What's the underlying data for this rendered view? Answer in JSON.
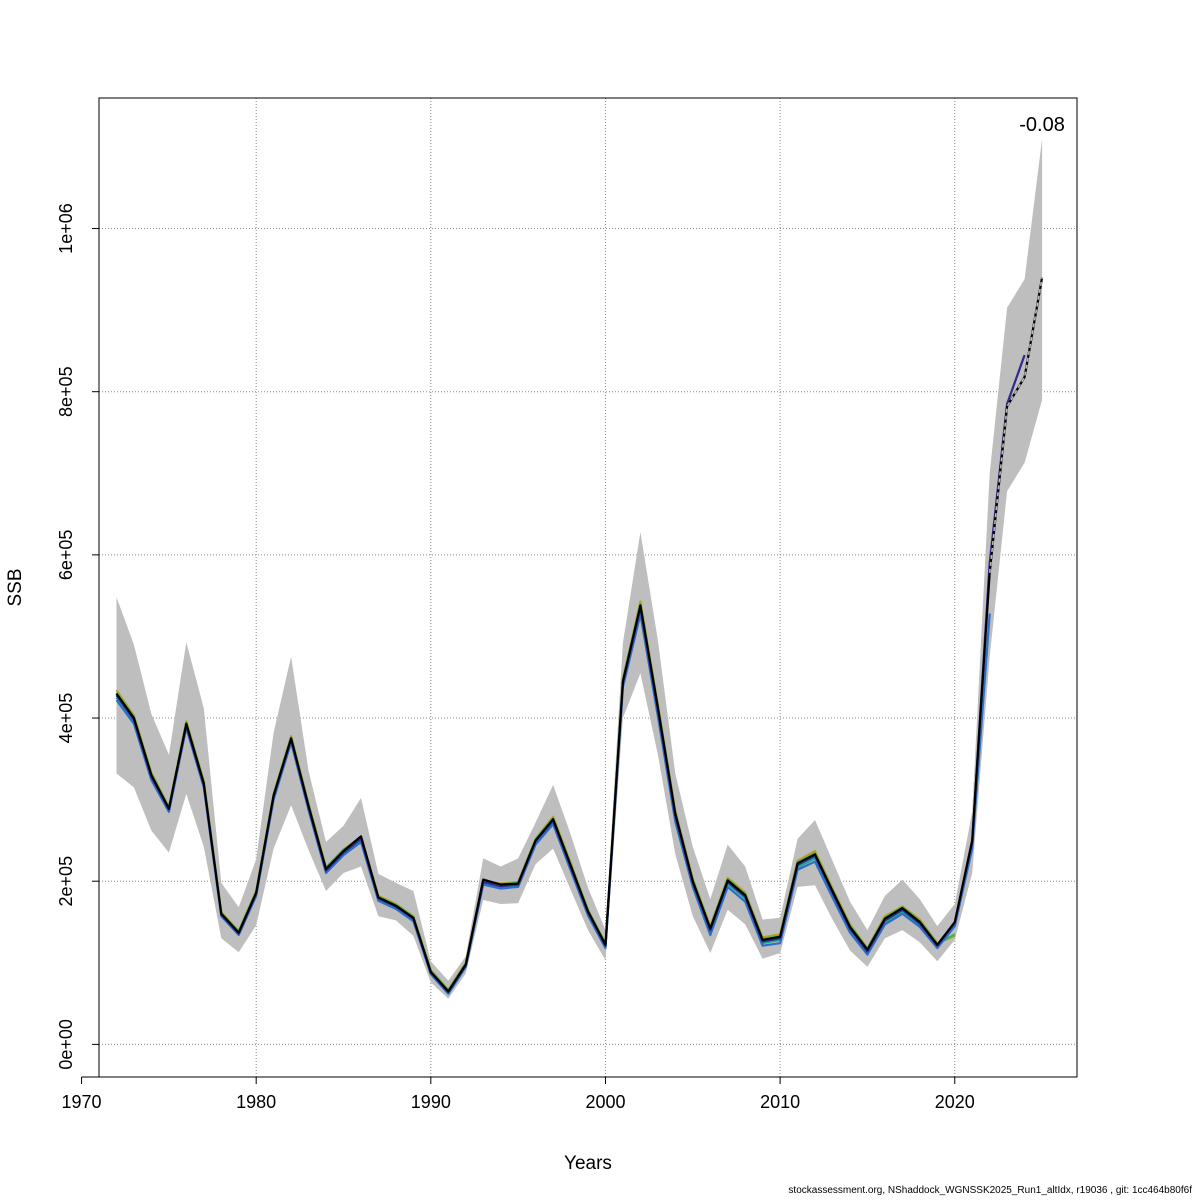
{
  "chart_data": {
    "type": "line",
    "title": "",
    "xlabel": "Years",
    "ylabel": "SSB",
    "xlim": [
      1971,
      2027
    ],
    "ylim": [
      -40000,
      1160000
    ],
    "grid": true,
    "x_ticks": [
      1970,
      1980,
      1990,
      2000,
      2010,
      2020
    ],
    "x_tick_labels": [
      "1970",
      "1980",
      "1990",
      "2000",
      "2010",
      "2020"
    ],
    "y_ticks": [
      0,
      200000,
      400000,
      600000,
      800000,
      1000000
    ],
    "y_tick_labels": [
      "0e+00",
      "2e+05",
      "4e+05",
      "6e+05",
      "8e+05",
      "1e+06"
    ],
    "annotation": "-0.08",
    "confidence_band": {
      "color": "#bebebe",
      "x": [
        1972,
        1973,
        1974,
        1975,
        1976,
        1977,
        1978,
        1979,
        1980,
        1981,
        1982,
        1983,
        1984,
        1985,
        1986,
        1987,
        1988,
        1989,
        1990,
        1991,
        1992,
        1993,
        1994,
        1995,
        1996,
        1997,
        1998,
        1999,
        2000,
        2001,
        2002,
        2003,
        2004,
        2005,
        2006,
        2007,
        2008,
        2009,
        2010,
        2011,
        2012,
        2013,
        2014,
        2015,
        2016,
        2017,
        2018,
        2019,
        2020,
        2021,
        2022,
        2023,
        2024,
        2025
      ],
      "upper": [
        548000,
        490000,
        405000,
        355000,
        493000,
        412000,
        198000,
        168000,
        227000,
        382000,
        475000,
        335000,
        248000,
        268000,
        302000,
        209000,
        198000,
        188000,
        102000,
        78000,
        108000,
        228000,
        218000,
        228000,
        272000,
        318000,
        258000,
        192000,
        140000,
        492000,
        628000,
        495000,
        332000,
        242000,
        178000,
        245000,
        218000,
        153000,
        155000,
        252000,
        275000,
        225000,
        175000,
        140000,
        182000,
        202000,
        178000,
        145000,
        172000,
        285000,
        700000,
        903000,
        938000,
        1110000
      ],
      "lower": [
        332000,
        315000,
        262000,
        235000,
        307000,
        242000,
        130000,
        113000,
        146000,
        240000,
        293000,
        238000,
        188000,
        210000,
        218000,
        157000,
        152000,
        133000,
        76000,
        56000,
        87000,
        177000,
        172000,
        173000,
        221000,
        240000,
        190000,
        140000,
        103000,
        400000,
        455000,
        355000,
        233000,
        157000,
        112000,
        165000,
        147000,
        105000,
        112000,
        193000,
        195000,
        153000,
        115000,
        95000,
        130000,
        140000,
        125000,
        102000,
        128000,
        210000,
        475000,
        678000,
        713000,
        790000
      ]
    },
    "series": [
      {
        "color": "#000000",
        "x": [
          1972,
          1973,
          1974,
          1975,
          1976,
          1977,
          1978,
          1979,
          1980,
          1981,
          1982,
          1983,
          1984,
          1985,
          1986,
          1987,
          1988,
          1989,
          1990,
          1991,
          1992,
          1993,
          1994,
          1995,
          1996,
          1997,
          1998,
          1999,
          2000,
          2001,
          2002,
          2003,
          2004,
          2005,
          2006,
          2007,
          2008,
          2009,
          2010,
          2011,
          2012,
          2013,
          2014,
          2015,
          2016,
          2017,
          2018,
          2019,
          2020,
          2021,
          2022,
          2023,
          2024,
          2025
        ],
        "values": [
          430000,
          400000,
          330000,
          289000,
          393000,
          320000,
          160000,
          137000,
          186000,
          305000,
          375000,
          292000,
          215000,
          237000,
          255000,
          180000,
          170000,
          155000,
          89000,
          65000,
          98000,
          202000,
          196000,
          197000,
          250000,
          276000,
          220000,
          163000,
          122000,
          445000,
          538000,
          413000,
          283000,
          200000,
          142000,
          201000,
          183000,
          128000,
          132000,
          222000,
          233000,
          188000,
          144000,
          116000,
          154000,
          167000,
          150000,
          122000,
          150000,
          250000,
          578000,
          782000,
          818000,
          940000
        ]
      },
      {
        "color": "#2f2a8c",
        "x": [
          1972,
          1973,
          1974,
          1975,
          1976,
          1977,
          1978,
          1979,
          1980,
          1981,
          1982,
          1983,
          1984,
          1985,
          1986,
          1987,
          1988,
          1989,
          1990,
          1991,
          1992,
          1993,
          1994,
          1995,
          1996,
          1997,
          1998,
          1999,
          2000,
          2001,
          2002,
          2003,
          2004,
          2005,
          2006,
          2007,
          2008,
          2009,
          2010,
          2011,
          2012,
          2013,
          2014,
          2015,
          2016,
          2017,
          2018,
          2019,
          2020,
          2021,
          2022,
          2023,
          2024
        ],
        "values": [
          428000,
          398000,
          328000,
          288000,
          391000,
          318000,
          159000,
          136000,
          185000,
          304000,
          374000,
          290000,
          213000,
          235000,
          252000,
          179000,
          169000,
          154000,
          88000,
          64000,
          97000,
          199000,
          194000,
          196000,
          249000,
          274000,
          218000,
          162000,
          121000,
          443000,
          535000,
          410000,
          280000,
          198000,
          140000,
          199000,
          181000,
          126000,
          130000,
          220000,
          231000,
          186000,
          142000,
          114000,
          152000,
          165000,
          148000,
          121000,
          149000,
          248000,
          590000,
          785000,
          845000
        ]
      },
      {
        "color": "#2c6ec9",
        "x": [
          1972,
          1973,
          1974,
          1975,
          1976,
          1977,
          1978,
          1979,
          1980,
          1981,
          1982,
          1983,
          1984,
          1985,
          1986,
          1987,
          1988,
          1989,
          1990,
          1991,
          1992,
          1993,
          1994,
          1995,
          1996,
          1997,
          1998,
          1999,
          2000,
          2001,
          2002,
          2003,
          2004,
          2005,
          2006,
          2007,
          2008,
          2009,
          2010,
          2011,
          2012,
          2013,
          2014,
          2015,
          2016,
          2017,
          2018,
          2019,
          2020,
          2021,
          2022
        ],
        "values": [
          422000,
          393000,
          324000,
          285000,
          388000,
          315000,
          157000,
          134000,
          182000,
          300000,
          370000,
          287000,
          210000,
          232000,
          248000,
          176000,
          166000,
          151000,
          86000,
          62000,
          95000,
          196000,
          191000,
          193000,
          245000,
          270000,
          214000,
          158000,
          118000,
          438000,
          527000,
          402000,
          273000,
          193000,
          134000,
          193000,
          175000,
          121000,
          124000,
          214000,
          224000,
          180000,
          137000,
          110000,
          147000,
          160000,
          144000,
          118000,
          145000,
          240000,
          528000
        ]
      },
      {
        "color": "#1fa88e",
        "x": [
          1972,
          1973,
          1974,
          1975,
          1976,
          1977,
          1978,
          1979,
          1980,
          1981,
          1982,
          1983,
          1984,
          1985,
          1986,
          1987,
          1988,
          1989,
          1990,
          1991,
          1992,
          1993,
          1994,
          1995,
          1996,
          1997,
          1998,
          1999,
          2000,
          2001,
          2002,
          2003,
          2004,
          2005,
          2006,
          2007,
          2008,
          2009,
          2010,
          2011,
          2012,
          2013,
          2014,
          2015,
          2016,
          2017,
          2018,
          2019,
          2020,
          2021
        ],
        "values": [
          425000,
          396000,
          326000,
          287000,
          390000,
          317000,
          159000,
          135000,
          184000,
          302000,
          372000,
          289000,
          212000,
          234000,
          250000,
          178000,
          168000,
          153000,
          87000,
          63000,
          96000,
          198000,
          193000,
          195000,
          247000,
          272000,
          216000,
          160000,
          120000,
          440000,
          531000,
          406000,
          277000,
          196000,
          138000,
          197000,
          179000,
          124000,
          128000,
          217000,
          228000,
          184000,
          140000,
          112000,
          150000,
          163000,
          146000,
          120000,
          147000,
          244000
        ]
      },
      {
        "color": "#3bb84a",
        "x": [
          1972,
          1973,
          1974,
          1975,
          1976,
          1977,
          1978,
          1979,
          1980,
          1981,
          1982,
          1983,
          1984,
          1985,
          1986,
          1987,
          1988,
          1989,
          1990,
          1991,
          1992,
          1993,
          1994,
          1995,
          1996,
          1997,
          1998,
          1999,
          2000,
          2001,
          2002,
          2003,
          2004,
          2005,
          2006,
          2007,
          2008,
          2009,
          2010,
          2011,
          2012,
          2013,
          2014,
          2015,
          2016,
          2017,
          2018,
          2019,
          2020
        ],
        "values": [
          431000,
          401000,
          331000,
          290000,
          394000,
          321000,
          161000,
          138000,
          187000,
          306000,
          376000,
          293000,
          216000,
          238000,
          253000,
          181000,
          171000,
          156000,
          90000,
          66000,
          99000,
          199000,
          196000,
          198000,
          251000,
          277000,
          221000,
          164000,
          123000,
          446000,
          539000,
          414000,
          284000,
          201000,
          143000,
          202000,
          184000,
          129000,
          133000,
          223000,
          234000,
          189000,
          145000,
          117000,
          155000,
          168000,
          151000,
          123000,
          135000
        ]
      },
      {
        "color": "#b5a020",
        "x": [
          1972,
          1973,
          1974,
          1975,
          1976,
          1977,
          1978,
          1979,
          1980,
          1981,
          1982,
          1983,
          1984,
          1985,
          1986,
          1987,
          1988,
          1989,
          1990,
          1991,
          1992,
          1993,
          1994,
          1995,
          1996,
          1997,
          1998,
          1999,
          2000,
          2001,
          2002,
          2003,
          2004,
          2005,
          2006,
          2007,
          2008,
          2009,
          2010,
          2011,
          2012,
          2013,
          2014,
          2015,
          2016,
          2017,
          2018,
          2019,
          2020
        ],
        "values": [
          434000,
          403000,
          333000,
          291000,
          396000,
          323000,
          162000,
          139000,
          188000,
          307000,
          378000,
          295000,
          217000,
          239000,
          254000,
          182000,
          172000,
          157000,
          91000,
          67000,
          100000,
          200000,
          197000,
          199000,
          252000,
          279000,
          223000,
          165000,
          124000,
          448000,
          543000,
          416000,
          286000,
          203000,
          145000,
          204000,
          186000,
          131000,
          135000,
          225000,
          237000,
          191000,
          147000,
          118000,
          157000,
          169000,
          153000,
          124000,
          133000
        ]
      }
    ],
    "dashed_series": {
      "color": "#bbbbbb",
      "x": [
        2022,
        2023,
        2024,
        2025
      ],
      "values": [
        578000,
        782000,
        818000,
        940000
      ]
    }
  },
  "footer": "stockassessment.org, NShaddock_WGNSSK2025_Run1_altIdx, r19036 , git: 1cc464b80f6f"
}
